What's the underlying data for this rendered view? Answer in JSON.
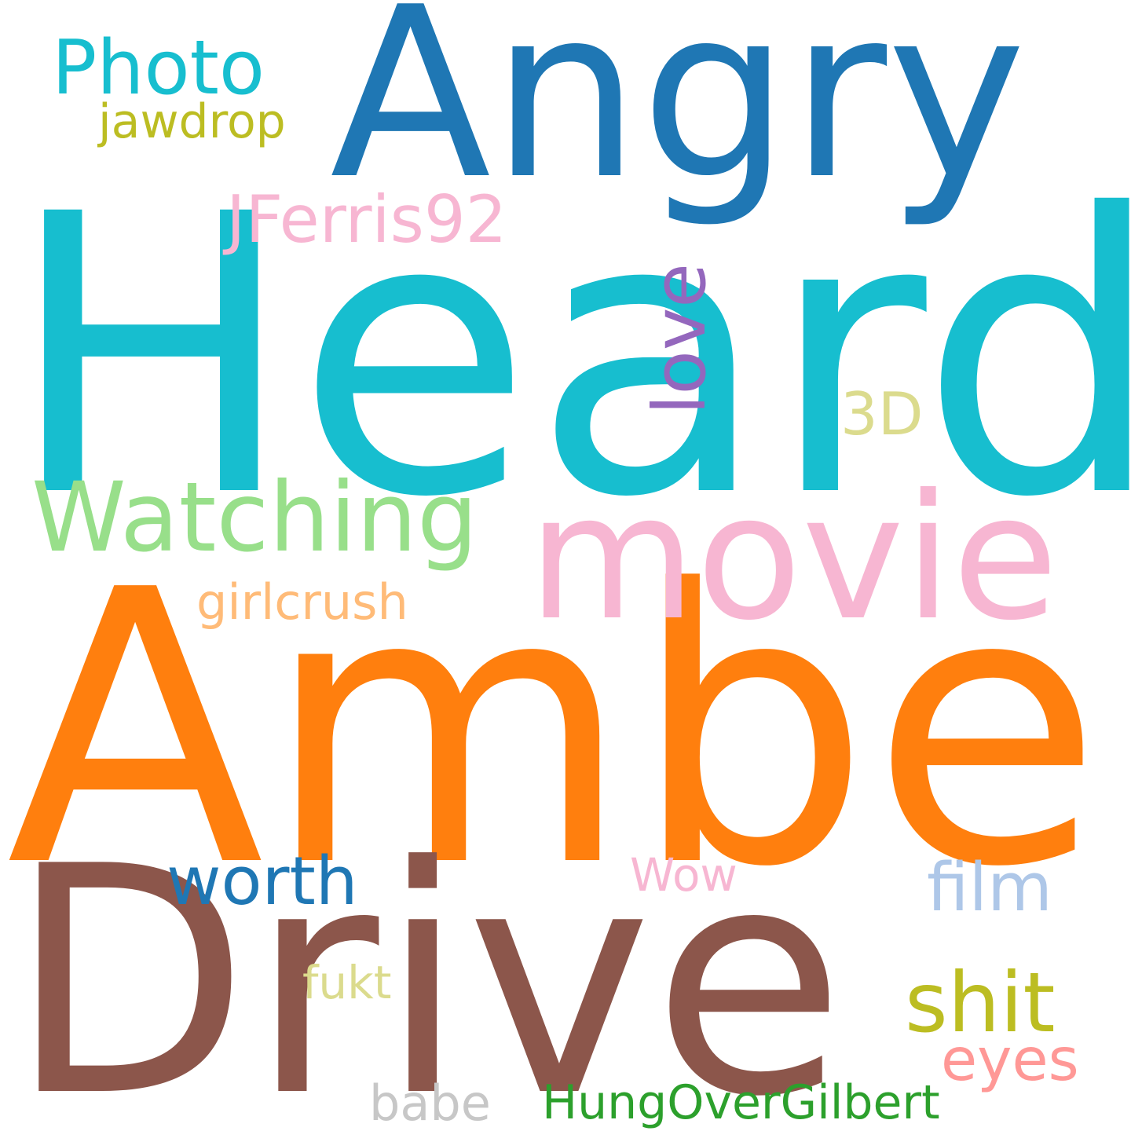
{
  "words": {
    "heard": {
      "text": "Heard",
      "color": "#17becf"
    },
    "amber": {
      "text": "Amber",
      "color": "#ff7f0e"
    },
    "drive": {
      "text": "Drive",
      "color": "#8c564b"
    },
    "angry": {
      "text": "Angry",
      "color": "#1f77b4"
    },
    "movie": {
      "text": "movie",
      "color": "#f7b6d2"
    },
    "watching": {
      "text": "Watching",
      "color": "#98df8a"
    },
    "photo": {
      "text": "Photo",
      "color": "#17becf"
    },
    "jferris": {
      "text": "JFerris92",
      "color": "#f7b6d2"
    },
    "jawdrop": {
      "text": "jawdrop",
      "color": "#bcbd22"
    },
    "love": {
      "text": "love",
      "color": "#9467bd"
    },
    "threed": {
      "text": "3D",
      "color": "#dbdb8d"
    },
    "girlcrush": {
      "text": "girlcrush",
      "color": "#ffbb78"
    },
    "worth": {
      "text": "worth",
      "color": "#1f77b4"
    },
    "wow": {
      "text": "Wow",
      "color": "#f7b6d2"
    },
    "film": {
      "text": "film",
      "color": "#aec7e8"
    },
    "fukt": {
      "text": "fukt",
      "color": "#dbdb8d"
    },
    "shit": {
      "text": "shit",
      "color": "#bcbd22"
    },
    "eyes": {
      "text": "eyes",
      "color": "#ff9896"
    },
    "babe": {
      "text": "babe",
      "color": "#c7c7c7"
    },
    "hung": {
      "text": "HungOverGilbert",
      "color": "#2ca02c"
    }
  }
}
